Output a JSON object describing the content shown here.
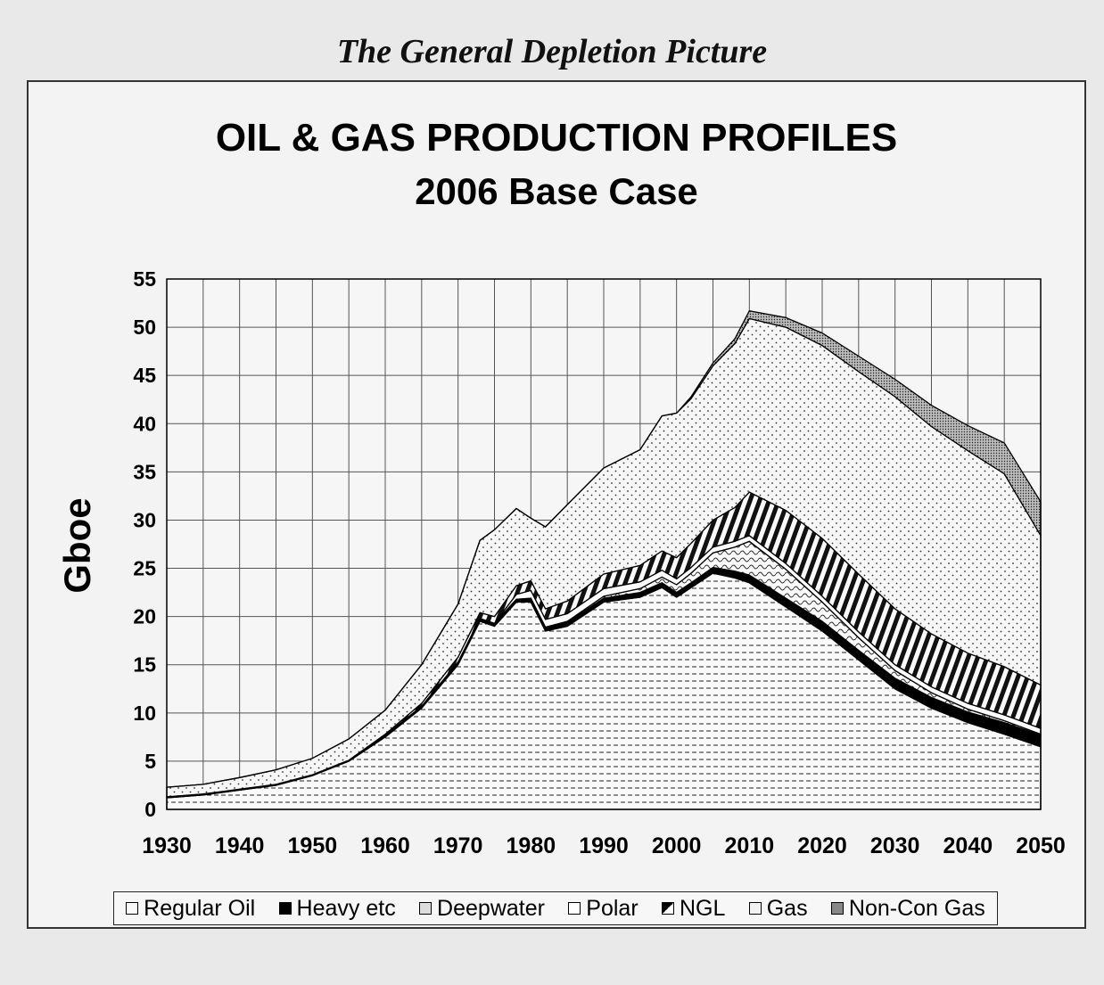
{
  "heading": "The General Depletion Picture",
  "chart_data": {
    "type": "area",
    "stacked": true,
    "title": "OIL & GAS PRODUCTION PROFILES",
    "subtitle": "2006 Base Case",
    "ylabel": "Gboe",
    "xlabel": "",
    "xlim": [
      1930,
      2050
    ],
    "ylim": [
      0,
      55
    ],
    "x_ticks": [
      "1930",
      "1940",
      "1950",
      "1960",
      "1970",
      "1980",
      "1990",
      "2000",
      "2010",
      "2020",
      "2030",
      "2040",
      "2050"
    ],
    "y_ticks": [
      "0",
      "5",
      "10",
      "15",
      "20",
      "25",
      "30",
      "35",
      "40",
      "45",
      "50",
      "55"
    ],
    "grid": true,
    "legend_position": "bottom",
    "x": [
      1930,
      1935,
      1940,
      1945,
      1950,
      1955,
      1960,
      1965,
      1970,
      1973,
      1975,
      1978,
      1980,
      1982,
      1985,
      1990,
      1995,
      1998,
      2000,
      2002,
      2005,
      2008,
      2010,
      2015,
      2020,
      2025,
      2030,
      2035,
      2040,
      2045,
      2050
    ],
    "series": [
      {
        "name": "Regular Oil",
        "values": [
          1.2,
          1.5,
          2.0,
          2.5,
          3.5,
          5.0,
          7.5,
          10.5,
          15.0,
          19.5,
          19.0,
          21.5,
          21.5,
          18.5,
          19.0,
          21.5,
          22.0,
          23.0,
          22.0,
          23.0,
          24.5,
          24.0,
          23.5,
          21.0,
          18.5,
          15.5,
          12.5,
          10.5,
          9.0,
          7.8,
          6.5
        ]
      },
      {
        "name": "Heavy etc",
        "values": [
          0.1,
          0.1,
          0.1,
          0.1,
          0.1,
          0.1,
          0.2,
          0.2,
          0.3,
          0.3,
          0.3,
          0.3,
          0.4,
          0.4,
          0.4,
          0.4,
          0.5,
          0.5,
          0.5,
          0.5,
          0.6,
          0.7,
          0.8,
          0.9,
          1.0,
          1.0,
          1.1,
          1.1,
          1.1,
          1.2,
          1.2
        ]
      },
      {
        "name": "Deepwater",
        "values": [
          0,
          0,
          0,
          0,
          0,
          0,
          0,
          0,
          0,
          0,
          0,
          0,
          0,
          0,
          0.1,
          0.2,
          0.4,
          0.6,
          0.8,
          1.0,
          1.5,
          2.5,
          3.5,
          3.0,
          2.0,
          1.3,
          0.8,
          0.5,
          0.3,
          0.2,
          0.1
        ]
      },
      {
        "name": "Polar",
        "values": [
          0,
          0,
          0,
          0,
          0,
          0,
          0,
          0,
          0,
          0,
          0,
          0.5,
          0.8,
          0.8,
          0.8,
          0.8,
          0.7,
          0.7,
          0.6,
          0.6,
          0.6,
          0.6,
          0.6,
          0.6,
          0.6,
          0.6,
          0.6,
          0.6,
          0.6,
          0.6,
          0.6
        ]
      },
      {
        "name": "NGL",
        "values": [
          0,
          0,
          0,
          0,
          0,
          0,
          0.1,
          0.3,
          0.5,
          0.6,
          0.7,
          0.9,
          1.0,
          1.1,
          1.3,
          1.5,
          1.7,
          2.0,
          2.2,
          2.5,
          2.8,
          3.5,
          4.5,
          5.5,
          6.0,
          6.0,
          5.8,
          5.5,
          5.2,
          5.0,
          4.5
        ]
      },
      {
        "name": "Gas",
        "values": [
          1.0,
          1.0,
          1.2,
          1.5,
          1.7,
          2.2,
          2.5,
          4.0,
          5.5,
          7.5,
          9.0,
          8.0,
          6.5,
          8.5,
          10.0,
          11.0,
          12.0,
          14.0,
          15.0,
          15.0,
          16.0,
          17.0,
          18.0,
          19.0,
          20.0,
          21.0,
          22.0,
          21.5,
          21.0,
          20.0,
          15.5
        ]
      },
      {
        "name": "Non-Con Gas",
        "values": [
          0,
          0,
          0,
          0,
          0,
          0,
          0,
          0,
          0,
          0,
          0,
          0,
          0,
          0,
          0,
          0,
          0,
          0,
          0,
          0.2,
          0.3,
          0.5,
          0.8,
          1.0,
          1.3,
          1.6,
          1.8,
          2.2,
          2.6,
          3.2,
          3.5
        ]
      }
    ]
  }
}
